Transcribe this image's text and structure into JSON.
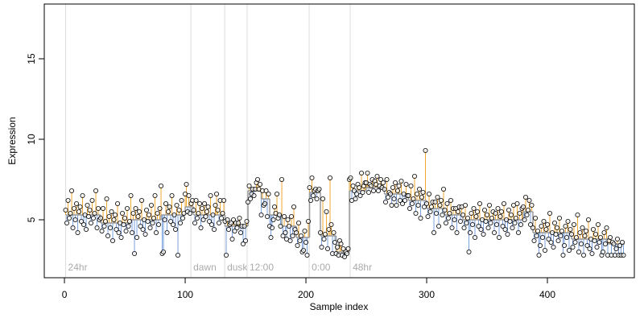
{
  "chart_data": {
    "type": "step-scatter",
    "xlabel": "Sample index",
    "ylabel": "Expression",
    "xlim": [
      -16.7,
      472
    ],
    "ylim": [
      1.4,
      18.4
    ],
    "xticks": [
      0,
      100,
      200,
      300,
      400
    ],
    "yticks": [
      5,
      10,
      15
    ],
    "point_color": "#000000",
    "above_color": "#f0a830",
    "below_color": "#7aa0dc",
    "step_color": "#999999",
    "marker_color": "#dddddd",
    "markers": [
      {
        "x": 1,
        "label": "24hr"
      },
      {
        "x": 104.7,
        "label": "dawn"
      },
      {
        "x": 132.7,
        "label": "dusk"
      },
      {
        "x": 151.3,
        "label": "12:00"
      },
      {
        "x": 202.7,
        "label": "0:00"
      },
      {
        "x": 236.7,
        "label": "48hr"
      }
    ],
    "segments": [
      {
        "start": 1,
        "end": 30,
        "level": 5.3
      },
      {
        "start": 30,
        "end": 55,
        "level": 4.8
      },
      {
        "start": 55,
        "end": 80,
        "level": 5.0
      },
      {
        "start": 80,
        "end": 100,
        "level": 5.3
      },
      {
        "start": 100,
        "end": 107,
        "level": 5.8
      },
      {
        "start": 107,
        "end": 133,
        "level": 5.3
      },
      {
        "start": 133,
        "end": 152,
        "level": 4.6
      },
      {
        "start": 152,
        "end": 163,
        "level": 6.8
      },
      {
        "start": 163,
        "end": 170,
        "level": 6.3
      },
      {
        "start": 170,
        "end": 180,
        "level": 5.3
      },
      {
        "start": 180,
        "end": 192,
        "level": 4.6
      },
      {
        "start": 192,
        "end": 203,
        "level": 3.9
      },
      {
        "start": 203,
        "end": 212,
        "level": 6.7
      },
      {
        "start": 212,
        "end": 225,
        "level": 4.0
      },
      {
        "start": 225,
        "end": 236,
        "level": 3.0
      },
      {
        "start": 236,
        "end": 250,
        "level": 6.8
      },
      {
        "start": 250,
        "end": 265,
        "level": 7.0
      },
      {
        "start": 265,
        "end": 285,
        "level": 6.6
      },
      {
        "start": 285,
        "end": 300,
        "level": 6.2
      },
      {
        "start": 300,
        "end": 315,
        "level": 5.7
      },
      {
        "start": 315,
        "end": 330,
        "level": 5.3
      },
      {
        "start": 330,
        "end": 380,
        "level": 5.0
      },
      {
        "start": 380,
        "end": 388,
        "level": 5.5
      },
      {
        "start": 388,
        "end": 420,
        "level": 4.2
      },
      {
        "start": 420,
        "end": 450,
        "level": 3.8
      },
      {
        "start": 450,
        "end": 464,
        "level": 3.5
      }
    ],
    "values": [
      5.6,
      4.8,
      6.2,
      5.1,
      5.4,
      6.8,
      4.5,
      5.7,
      5.0,
      6.0,
      4.2,
      5.5,
      5.8,
      4.9,
      6.5,
      4.7,
      5.3,
      4.4,
      5.9,
      5.2,
      5.6,
      4.8,
      6.2,
      5.1,
      5.4,
      6.8,
      4.5,
      5.7,
      5.0,
      5.1,
      4.3,
      5.7,
      4.6,
      4.9,
      6.3,
      4.0,
      5.2,
      4.5,
      5.5,
      3.7,
      5.0,
      5.3,
      4.4,
      6.0,
      4.2,
      4.8,
      3.9,
      5.4,
      4.7,
      5.1,
      4.3,
      5.7,
      4.6,
      4.9,
      6.5,
      4.2,
      5.4,
      2.9,
      5.7,
      3.9,
      5.2,
      5.5,
      4.6,
      6.2,
      4.4,
      5.0,
      4.1,
      5.6,
      4.9,
      5.3,
      4.5,
      5.9,
      4.8,
      5.1,
      6.5,
      4.2,
      5.4,
      4.7,
      5.7,
      7.1,
      2.9,
      3.0,
      5.0,
      6.0,
      4.2,
      5.5,
      5.8,
      4.9,
      6.5,
      4.7,
      5.3,
      4.4,
      5.9,
      2.8,
      5.6,
      4.8,
      6.2,
      5.1,
      5.4,
      6.6,
      7.2,
      5.5,
      6.5,
      5.4,
      6.0,
      6.2,
      5.6,
      4.8,
      6.2,
      5.1,
      5.4,
      6.0,
      4.5,
      5.7,
      5.0,
      6.0,
      5.2,
      5.5,
      5.8,
      4.9,
      6.5,
      4.7,
      5.3,
      4.4,
      5.9,
      6.6,
      5.6,
      4.8,
      6.2,
      5.1,
      5.4,
      6.2,
      4.9,
      2.8,
      5.0,
      4.4,
      4.7,
      4.8,
      3.8,
      5.0,
      4.3,
      4.8,
      4.5,
      4.8,
      5.1,
      4.2,
      4.6,
      3.5,
      4.6,
      3.7,
      4.9,
      6.1,
      7.1,
      6.3,
      6.6,
      6.9,
      6.5,
      6.9,
      7.3,
      7.5,
      6.9,
      7.2,
      5.3,
      6.8,
      5.9,
      6.0,
      6.8,
      5.2,
      6.6,
      4.6,
      3.9,
      4.5,
      5.0,
      5.8,
      5.4,
      6.6,
      5.1,
      5.3,
      4.6,
      7.5,
      4.0,
      5.2,
      4.2,
      3.8,
      5.0,
      4.6,
      3.7,
      5.2,
      4.0,
      5.8,
      4.4,
      4.2,
      3.4,
      4.8,
      3.7,
      4.0,
      3.0,
      3.1,
      4.3,
      3.6,
      2.8,
      4.9,
      7.0,
      6.2,
      7.6,
      6.5,
      6.8,
      6.9,
      6.3,
      6.8,
      6.9,
      4.2,
      3.3,
      6.3,
      3.8,
      4.1,
      5.5,
      3.2,
      4.4,
      7.6,
      4.7,
      2.9,
      4.2,
      3.6,
      2.9,
      3.3,
      2.8,
      3.7,
      3.5,
      2.8,
      3.2,
      2.7,
      3.0,
      2.9,
      3.2,
      7.5,
      7.6,
      6.2,
      7.1,
      6.8,
      6.3,
      6.6,
      7.2,
      7.0,
      6.5,
      7.9,
      6.7,
      7.1,
      7.3,
      7.3,
      7.9,
      6.7,
      7.2,
      7.1,
      7.5,
      6.8,
      7.4,
      7.2,
      7.7,
      6.8,
      7.1,
      7.5,
      7.0,
      7.3,
      6.9,
      6.1,
      7.5,
      6.4,
      6.7,
      6.6,
      5.9,
      7.0,
      6.3,
      7.3,
      5.9,
      6.8,
      7.1,
      6.2,
      7.4,
      6.0,
      6.6,
      6.2,
      7.2,
      6.5,
      6.5,
      5.7,
      7.1,
      6.0,
      6.3,
      7.7,
      5.4,
      6.6,
      5.9,
      6.9,
      5.1,
      6.4,
      6.7,
      5.8,
      9.3,
      6.0,
      5.2,
      6.6,
      5.5,
      5.8,
      6.1,
      4.2,
      6.1,
      5.4,
      6.4,
      4.6,
      5.9,
      6.2,
      5.3,
      6.9,
      5.6,
      4.8,
      6.0,
      5.1,
      5.4,
      6.2,
      4.5,
      5.7,
      5.0,
      5.7,
      4.2,
      5.5,
      5.8,
      4.9,
      5.8,
      5.3,
      4.5,
      5.9,
      4.8,
      5.1,
      3.0,
      4.2,
      5.4,
      4.7,
      5.7,
      3.9,
      5.2,
      5.5,
      4.6,
      6.0,
      4.4,
      5.0,
      4.1,
      5.6,
      4.9,
      5.3,
      4.5,
      5.9,
      4.8,
      5.1,
      5.5,
      4.2,
      5.4,
      4.7,
      5.7,
      3.9,
      5.2,
      5.5,
      4.6,
      6.0,
      4.4,
      5.0,
      4.1,
      5.6,
      4.9,
      5.3,
      4.5,
      5.9,
      4.8,
      5.1,
      6.0,
      4.2,
      5.4,
      4.7,
      5.7,
      5.8,
      5.0,
      6.4,
      5.3,
      5.6,
      6.2,
      4.7,
      5.9,
      4.5,
      3.7,
      5.1,
      4.0,
      4.3,
      2.8,
      3.4,
      4.6,
      3.9,
      4.9,
      3.1,
      4.4,
      4.7,
      3.8,
      5.4,
      3.6,
      4.2,
      3.3,
      4.8,
      4.1,
      4.5,
      3.7,
      5.1,
      4.0,
      4.3,
      2.8,
      3.4,
      4.6,
      3.9,
      4.9,
      3.1,
      4.4,
      4.1,
      3.3,
      4.7,
      3.6,
      3.9,
      5.3,
      3.0,
      4.2,
      3.5,
      4.5,
      2.8,
      4.0,
      4.3,
      3.4,
      5.0,
      3.2,
      3.8,
      2.9,
      4.4,
      3.7,
      4.1,
      3.3,
      4.7,
      3.6,
      3.9,
      2.8,
      3.0,
      4.2,
      3.5,
      4.5,
      2.8,
      3.7,
      3.9,
      2.8,
      3.6,
      3.5,
      2.8,
      3.2,
      3.8,
      2.8,
      3.4,
      2.8,
      3.6,
      2.8
    ]
  }
}
